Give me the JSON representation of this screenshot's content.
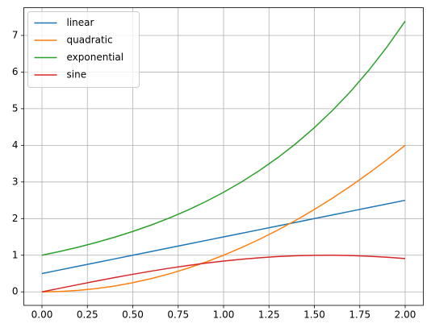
{
  "chart_data": {
    "type": "line",
    "x": [
      0,
      0.1,
      0.2,
      0.3,
      0.4,
      0.5,
      0.6,
      0.7,
      0.8,
      0.9,
      1.0,
      1.1,
      1.2,
      1.3,
      1.4,
      1.5,
      1.6,
      1.7,
      1.8,
      1.9,
      2.0
    ],
    "series": [
      {
        "name": "linear",
        "color": "#1f77b4",
        "values": [
          0.5,
          0.6,
          0.7,
          0.8,
          0.9,
          1.0,
          1.1,
          1.2,
          1.3,
          1.4,
          1.5,
          1.6,
          1.7,
          1.8,
          1.9,
          2.0,
          2.1,
          2.2,
          2.3,
          2.4,
          2.5
        ]
      },
      {
        "name": "quadratic",
        "color": "#ff7f0e",
        "values": [
          0,
          0.01,
          0.04,
          0.09,
          0.16,
          0.25,
          0.36,
          0.49,
          0.64,
          0.81,
          1.0,
          1.21,
          1.44,
          1.69,
          1.96,
          2.25,
          2.56,
          2.89,
          3.24,
          3.61,
          4.0
        ]
      },
      {
        "name": "exponential",
        "color": "#2ca02c",
        "values": [
          1.0,
          1.105,
          1.221,
          1.35,
          1.492,
          1.649,
          1.822,
          2.014,
          2.226,
          2.46,
          2.718,
          3.004,
          3.32,
          3.669,
          4.055,
          4.482,
          4.953,
          5.474,
          6.05,
          6.686,
          7.389
        ]
      },
      {
        "name": "sine",
        "color": "#d62728",
        "values": [
          0,
          0.0998,
          0.1987,
          0.2955,
          0.3894,
          0.4794,
          0.5646,
          0.6442,
          0.7174,
          0.7833,
          0.8415,
          0.8912,
          0.932,
          0.9636,
          0.9854,
          0.9975,
          0.9996,
          0.9917,
          0.9738,
          0.9463,
          0.9093
        ]
      }
    ],
    "xlim": [
      -0.1,
      2.1
    ],
    "ylim": [
      -0.369,
      7.758
    ],
    "xticks": [
      {
        "value": 0,
        "label": "0.00"
      },
      {
        "value": 0.25,
        "label": "0.25"
      },
      {
        "value": 0.5,
        "label": "0.50"
      },
      {
        "value": 0.75,
        "label": "0.75"
      },
      {
        "value": 1.0,
        "label": "1.00"
      },
      {
        "value": 1.25,
        "label": "1.25"
      },
      {
        "value": 1.5,
        "label": "1.50"
      },
      {
        "value": 1.75,
        "label": "1.75"
      },
      {
        "value": 2.0,
        "label": "2.00"
      }
    ],
    "yticks": [
      0,
      1,
      2,
      3,
      4,
      5,
      6,
      7
    ],
    "grid": true,
    "legend": "upper left"
  }
}
